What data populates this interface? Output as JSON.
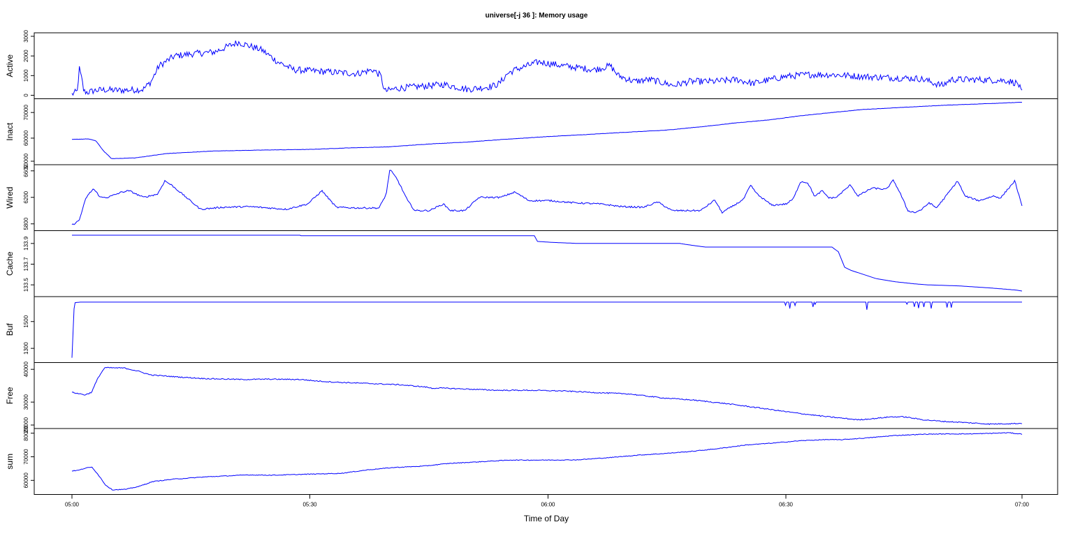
{
  "chart_data": {
    "type": "line",
    "title": "universe[-j 36  ]: Memory usage",
    "xlabel": "Time of Day",
    "x_ticks": [
      "05:00",
      "05:30",
      "06:00",
      "06:30",
      "07:00"
    ],
    "x_range_minutes": [
      0,
      120
    ],
    "series_color": "#0000ff",
    "panels": [
      {
        "name": "Active",
        "ylim": [
          0,
          3000
        ],
        "y_ticks": [
          "0",
          "1000",
          "2000",
          "3000"
        ],
        "keyframes": [
          [
            0,
            50
          ],
          [
            0.7,
            200
          ],
          [
            0.9,
            1400
          ],
          [
            1.3,
            700
          ],
          [
            1.5,
            200
          ],
          [
            2,
            150
          ],
          [
            3,
            250
          ],
          [
            4,
            280
          ],
          [
            6,
            250
          ],
          [
            9,
            300
          ],
          [
            10,
            700
          ],
          [
            11,
            1500
          ],
          [
            13,
            2000
          ],
          [
            15,
            2100
          ],
          [
            18,
            2200
          ],
          [
            21,
            2700
          ],
          [
            24,
            2300
          ],
          [
            26,
            1700
          ],
          [
            28,
            1300
          ],
          [
            32,
            1200
          ],
          [
            36,
            1100
          ],
          [
            38,
            1300
          ],
          [
            39,
            1000
          ],
          [
            39.5,
            200
          ],
          [
            41,
            350
          ],
          [
            44,
            450
          ],
          [
            47,
            550
          ],
          [
            50,
            300
          ],
          [
            53,
            450
          ],
          [
            54,
            600
          ],
          [
            55,
            1100
          ],
          [
            56,
            1300
          ],
          [
            59,
            1700
          ],
          [
            62,
            1500
          ],
          [
            66,
            1300
          ],
          [
            68,
            1500
          ],
          [
            69,
            1000
          ],
          [
            71,
            700
          ],
          [
            73,
            800
          ],
          [
            76,
            500
          ],
          [
            78,
            700
          ],
          [
            81,
            700
          ],
          [
            84,
            800
          ],
          [
            86,
            600
          ],
          [
            90,
            950
          ],
          [
            93,
            1050
          ],
          [
            96,
            1050
          ],
          [
            100,
            950
          ],
          [
            103,
            900
          ],
          [
            107,
            850
          ],
          [
            108,
            750
          ],
          [
            109,
            600
          ],
          [
            110,
            500
          ],
          [
            111,
            800
          ],
          [
            114,
            800
          ],
          [
            118,
            750
          ],
          [
            119.5,
            600
          ],
          [
            120,
            100
          ]
        ],
        "noise": 170
      },
      {
        "name": "Inact",
        "ylim": [
          51000,
          74000
        ],
        "y_ticks": [
          "50000",
          "60000",
          "70000"
        ],
        "keyframes": [
          [
            0,
            59500
          ],
          [
            2,
            59700
          ],
          [
            3,
            59000
          ],
          [
            4,
            55000
          ],
          [
            5,
            52000
          ],
          [
            8,
            52300
          ],
          [
            12,
            54000
          ],
          [
            18,
            55000
          ],
          [
            25,
            55400
          ],
          [
            30,
            55600
          ],
          [
            35,
            56200
          ],
          [
            40,
            56600
          ],
          [
            45,
            57700
          ],
          [
            50,
            58500
          ],
          [
            55,
            59600
          ],
          [
            60,
            60600
          ],
          [
            65,
            61400
          ],
          [
            70,
            62300
          ],
          [
            75,
            63100
          ],
          [
            80,
            64600
          ],
          [
            84,
            66000
          ],
          [
            88,
            67100
          ],
          [
            92,
            68700
          ],
          [
            96,
            70000
          ],
          [
            100,
            71200
          ],
          [
            105,
            72000
          ],
          [
            110,
            72800
          ],
          [
            115,
            73400
          ],
          [
            120,
            74000
          ]
        ],
        "noise": 60
      },
      {
        "name": "Wired",
        "ylim": [
          5750,
          6640
        ],
        "y_ticks": [
          "5800",
          "6200",
          "6600"
        ],
        "keyframes": [
          [
            0,
            5780
          ],
          [
            1,
            5850
          ],
          [
            2,
            6200
          ],
          [
            3,
            6330
          ],
          [
            4,
            6200
          ],
          [
            5,
            6200
          ],
          [
            7,
            6280
          ],
          [
            8,
            6300
          ],
          [
            10,
            6200
          ],
          [
            12,
            6250
          ],
          [
            13,
            6450
          ],
          [
            14,
            6380
          ],
          [
            16,
            6200
          ],
          [
            18,
            6020
          ],
          [
            21,
            6050
          ],
          [
            25,
            6060
          ],
          [
            30,
            6020
          ],
          [
            33,
            6100
          ],
          [
            35,
            6300
          ],
          [
            37,
            6050
          ],
          [
            40,
            6040
          ],
          [
            43,
            6040
          ],
          [
            44,
            6250
          ],
          [
            44.5,
            6620
          ],
          [
            45.5,
            6480
          ],
          [
            47,
            6150
          ],
          [
            48,
            6000
          ],
          [
            50,
            6000
          ],
          [
            52,
            6100
          ],
          [
            53,
            6000
          ],
          [
            55,
            6000
          ],
          [
            57,
            6200
          ],
          [
            60,
            6200
          ],
          [
            62,
            6280
          ],
          [
            64,
            6150
          ],
          [
            67,
            6150
          ],
          [
            70,
            6120
          ],
          [
            74,
            6100
          ],
          [
            77,
            6060
          ],
          [
            80,
            6050
          ],
          [
            82,
            6130
          ],
          [
            84,
            6000
          ],
          [
            86,
            6000
          ],
          [
            88,
            6000
          ],
          [
            90,
            6160
          ],
          [
            91,
            5970
          ],
          [
            93,
            6100
          ],
          [
            94,
            6170
          ],
          [
            95,
            6380
          ],
          [
            96,
            6240
          ],
          [
            98,
            6080
          ],
          [
            100,
            6100
          ],
          [
            101,
            6180
          ],
          [
            102,
            6440
          ],
          [
            103,
            6420
          ],
          [
            104,
            6210
          ],
          [
            105,
            6300
          ],
          [
            106,
            6190
          ],
          [
            107,
            6200
          ],
          [
            109,
            6390
          ],
          [
            110,
            6220
          ],
          [
            112,
            6340
          ],
          [
            114,
            6320
          ],
          [
            115,
            6460
          ],
          [
            116,
            6250
          ],
          [
            117,
            6000
          ],
          [
            118,
            5970
          ],
          [
            119,
            6020
          ],
          [
            120,
            6120
          ],
          [
            121,
            6040
          ],
          [
            122,
            6170
          ],
          [
            124,
            6450
          ],
          [
            125,
            6220
          ],
          [
            127,
            6150
          ],
          [
            129,
            6220
          ],
          [
            130,
            6190
          ],
          [
            132,
            6450
          ],
          [
            133,
            6060
          ]
        ],
        "noise": 12
      },
      {
        "name": "Cache",
        "ylim": [
          133.42,
          133.99
        ],
        "y_ticks": [
          "133.5",
          "133.7",
          "133.9"
        ],
        "keyframes": [
          [
            0,
            133.98
          ],
          [
            36,
            133.98
          ],
          [
            36.01,
            133.975
          ],
          [
            73,
            133.975
          ],
          [
            73.5,
            133.92
          ],
          [
            76,
            133.91
          ],
          [
            80,
            133.9
          ],
          [
            86,
            133.9
          ],
          [
            96,
            133.9
          ],
          [
            97,
            133.89
          ],
          [
            100,
            133.865
          ],
          [
            120,
            133.865
          ],
          [
            121,
            133.82
          ],
          [
            122,
            133.67
          ],
          [
            123,
            133.64
          ],
          [
            125,
            133.6
          ],
          [
            127,
            133.56
          ],
          [
            130,
            133.53
          ],
          [
            133,
            133.51
          ],
          [
            135,
            133.5
          ],
          [
            140,
            133.49
          ],
          [
            145,
            133.47
          ],
          [
            149,
            133.45
          ],
          [
            150,
            133.44
          ]
        ],
        "noise": 0
      },
      {
        "name": "Buf",
        "ylim": [
          1220,
          1660
        ],
        "y_ticks": [
          "1300",
          "1500"
        ],
        "keyframes": [
          [
            0,
            1230
          ],
          [
            0.3,
            1640
          ],
          [
            1,
            1645
          ],
          [
            120,
            1645
          ]
        ],
        "noise": 0
      },
      {
        "name": "Free",
        "ylim": [
          23000,
          41000
        ],
        "y_ticks": [
          "20000",
          "30000",
          "40000"
        ],
        "keyframes": [
          [
            0,
            33000
          ],
          [
            1,
            32600
          ],
          [
            2,
            32200
          ],
          [
            3,
            33000
          ],
          [
            4,
            37500
          ],
          [
            5,
            40500
          ],
          [
            8,
            40400
          ],
          [
            10,
            39500
          ],
          [
            12,
            38300
          ],
          [
            16,
            37700
          ],
          [
            20,
            37200
          ],
          [
            26,
            36900
          ],
          [
            30,
            37000
          ],
          [
            35,
            36900
          ],
          [
            37,
            36500
          ],
          [
            40,
            36100
          ],
          [
            45,
            35700
          ],
          [
            50,
            35300
          ],
          [
            54,
            34600
          ],
          [
            55,
            34200
          ],
          [
            56,
            34300
          ],
          [
            60,
            34000
          ],
          [
            65,
            33600
          ],
          [
            70,
            33600
          ],
          [
            75,
            33400
          ],
          [
            80,
            32900
          ],
          [
            85,
            32500
          ],
          [
            90,
            31300
          ],
          [
            95,
            30600
          ],
          [
            100,
            29500
          ],
          [
            105,
            28200
          ],
          [
            110,
            26800
          ],
          [
            115,
            25600
          ],
          [
            120,
            24600
          ],
          [
            122,
            24900
          ],
          [
            125,
            25500
          ],
          [
            127,
            25500
          ],
          [
            130,
            24600
          ],
          [
            133,
            24100
          ],
          [
            136,
            23800
          ],
          [
            140,
            23300
          ],
          [
            145,
            23500
          ]
        ],
        "noise": 160
      },
      {
        "name": "sum",
        "ylim": [
          55500,
          80500
        ],
        "y_ticks": [
          "60000",
          "70000",
          "80000"
        ],
        "keyframes": [
          [
            0,
            64000
          ],
          [
            1,
            64300
          ],
          [
            2,
            65200
          ],
          [
            3,
            65600
          ],
          [
            4,
            62000
          ],
          [
            5,
            58000
          ],
          [
            6,
            56000
          ],
          [
            8,
            56200
          ],
          [
            10,
            57500
          ],
          [
            12,
            59500
          ],
          [
            15,
            60500
          ],
          [
            20,
            61500
          ],
          [
            26,
            62300
          ],
          [
            30,
            62200
          ],
          [
            36,
            62700
          ],
          [
            40,
            63000
          ],
          [
            44,
            64500
          ],
          [
            48,
            65500
          ],
          [
            52,
            66000
          ],
          [
            56,
            67200
          ],
          [
            60,
            67800
          ],
          [
            65,
            68600
          ],
          [
            70,
            68600
          ],
          [
            75,
            68700
          ],
          [
            80,
            69700
          ],
          [
            84,
            70700
          ],
          [
            88,
            71400
          ],
          [
            92,
            72300
          ],
          [
            96,
            73500
          ],
          [
            100,
            75000
          ],
          [
            104,
            75800
          ],
          [
            108,
            76800
          ],
          [
            112,
            77300
          ],
          [
            114,
            77200
          ],
          [
            118,
            78000
          ],
          [
            122,
            79000
          ],
          [
            125,
            79400
          ],
          [
            127,
            79600
          ],
          [
            130,
            79700
          ],
          [
            133,
            79700
          ],
          [
            136,
            79900
          ],
          [
            139,
            80200
          ],
          [
            141,
            79600
          ]
        ],
        "noise": 150
      }
    ]
  }
}
